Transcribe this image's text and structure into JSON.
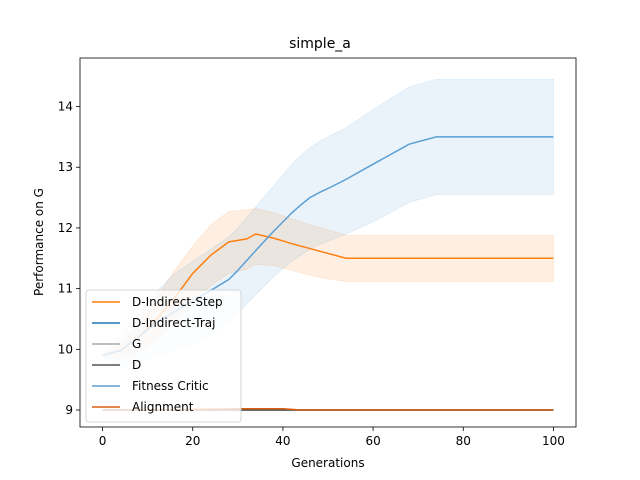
{
  "chart_data": {
    "type": "line",
    "title": "simple_a",
    "xlabel": "Generations",
    "ylabel": "Performance on G",
    "xlim": [
      -5,
      105
    ],
    "ylim": [
      8.72,
      14.8
    ],
    "xticks": [
      0,
      20,
      40,
      60,
      80,
      100
    ],
    "yticks": [
      9,
      10,
      11,
      12,
      13,
      14
    ],
    "grid": false,
    "legend_position": "lower-left",
    "series": [
      {
        "name": "D-Indirect-Step",
        "color": "#ff7f0e",
        "x": [
          0,
          4,
          8,
          12,
          16,
          20,
          24,
          28,
          32,
          34,
          38,
          42,
          46,
          50,
          54,
          60,
          70,
          80,
          90,
          100
        ],
        "y": [
          9.9,
          9.98,
          10.2,
          10.5,
          10.85,
          11.25,
          11.55,
          11.77,
          11.82,
          11.9,
          11.83,
          11.74,
          11.66,
          11.58,
          11.5,
          11.5,
          11.5,
          11.5,
          11.5,
          11.5
        ],
        "lower": [
          9.9,
          9.85,
          9.95,
          10.15,
          10.45,
          10.8,
          11.05,
          11.25,
          11.32,
          11.4,
          11.38,
          11.3,
          11.22,
          11.16,
          11.12,
          11.12,
          11.12,
          11.12,
          11.12,
          11.12
        ],
        "upper": [
          9.9,
          10.1,
          10.45,
          10.85,
          11.3,
          11.7,
          12.05,
          12.27,
          12.3,
          12.32,
          12.25,
          12.15,
          12.05,
          11.97,
          11.88,
          11.88,
          11.88,
          11.88,
          11.88,
          11.88
        ]
      },
      {
        "name": "D-Indirect-Traj",
        "color": "#1f77b4",
        "x": [
          0,
          20,
          40,
          60,
          80,
          100
        ],
        "y": [
          9.0,
          9.0,
          9.0,
          9.0,
          9.0,
          9.0
        ]
      },
      {
        "name": "G",
        "color": "#aaaaaa",
        "x": [
          0,
          20,
          40,
          60,
          80,
          100
        ],
        "y": [
          9.0,
          9.0,
          9.0,
          9.0,
          9.0,
          9.0
        ]
      },
      {
        "name": "D",
        "color": "#555555",
        "x": [
          0,
          20,
          40,
          60,
          80,
          100
        ],
        "y": [
          9.0,
          9.0,
          9.0,
          9.0,
          9.0,
          9.0
        ]
      },
      {
        "name": "Fitness Critic",
        "color": "#5a9fd4",
        "x": [
          0,
          4,
          8,
          12,
          16,
          20,
          24,
          28,
          30,
          34,
          38,
          42,
          44,
          46,
          48,
          50,
          54,
          60,
          68,
          74,
          80,
          90,
          100
        ],
        "y": [
          9.9,
          9.98,
          10.2,
          10.45,
          10.62,
          10.8,
          10.97,
          11.15,
          11.3,
          11.63,
          11.95,
          12.25,
          12.38,
          12.5,
          12.58,
          12.65,
          12.8,
          13.05,
          13.38,
          13.5,
          13.5,
          13.5,
          13.5
        ],
        "lower": [
          9.9,
          9.7,
          9.8,
          9.9,
          10.0,
          10.1,
          10.25,
          10.45,
          10.6,
          10.9,
          11.2,
          11.45,
          11.55,
          11.65,
          11.72,
          11.78,
          11.9,
          12.1,
          12.42,
          12.55,
          12.55,
          12.55,
          12.55
        ],
        "upper": [
          9.9,
          10.25,
          10.6,
          10.95,
          11.25,
          11.45,
          11.65,
          11.85,
          12.0,
          12.35,
          12.7,
          13.05,
          13.2,
          13.32,
          13.42,
          13.5,
          13.65,
          13.95,
          14.32,
          14.45,
          14.45,
          14.45,
          14.45
        ]
      },
      {
        "name": "Alignment",
        "color": "#d95f0e",
        "x": [
          0,
          10,
          20,
          30,
          40,
          44,
          50,
          60,
          70,
          80,
          90,
          100
        ],
        "y": [
          9.0,
          9.0,
          9.01,
          9.02,
          9.02,
          9.0,
          9.0,
          9.0,
          9.0,
          9.0,
          9.0,
          9.0
        ]
      }
    ]
  }
}
